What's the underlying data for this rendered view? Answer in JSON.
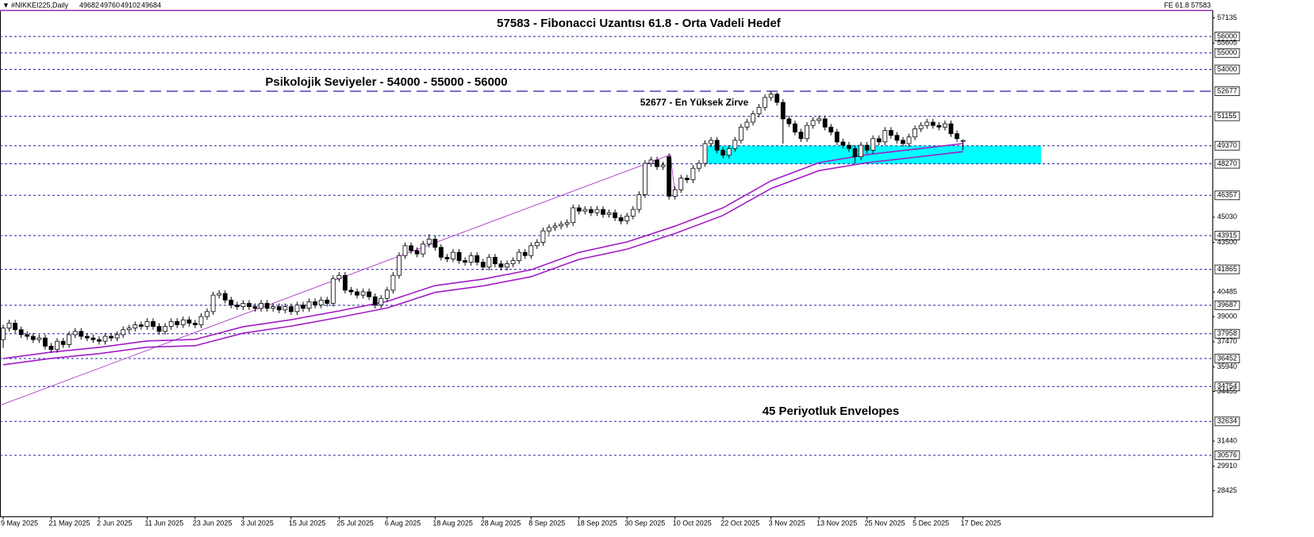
{
  "chart_data": {
    "type": "candlestick",
    "title": "#NIKKEI225,Daily",
    "categories": [
      "9 May 2025",
      null,
      null,
      null,
      null,
      null,
      null,
      null,
      "21 May 2025",
      null,
      null,
      null,
      null,
      null,
      null,
      null,
      "2 Jun 2025",
      null,
      null,
      null,
      null,
      null,
      null,
      null,
      "11 Jun 2025",
      null,
      null,
      null,
      null,
      null,
      null,
      null,
      "23 Jun 2025",
      null,
      null,
      null,
      null,
      null,
      null,
      null,
      "3 Jul 2025",
      null,
      null,
      null,
      null,
      null,
      null,
      null,
      "15 Jul 2025",
      null,
      null,
      null,
      null,
      null,
      null,
      null,
      "25 Jul 2025",
      null,
      null,
      null,
      null,
      null,
      null,
      null,
      "6 Aug 2025",
      null,
      null,
      null,
      null,
      null,
      null,
      null,
      "18 Aug 2025",
      null,
      null,
      null,
      null,
      null,
      null,
      null,
      "28 Aug 2025",
      null,
      null,
      null,
      null,
      null,
      null,
      null,
      "8 Sep 2025",
      null,
      null,
      null,
      null,
      null,
      null,
      null,
      "18 Sep 2025",
      null,
      null,
      null,
      null,
      null,
      null,
      null,
      "30 Sep 2025",
      null,
      null,
      null,
      null,
      null,
      null,
      null,
      "10 Oct 2025",
      null,
      null,
      null,
      null,
      null,
      null,
      null,
      "22 Oct 2025",
      null,
      null,
      null,
      null,
      null,
      null,
      null,
      "3 Nov 2025",
      null,
      null,
      null,
      null,
      null,
      null,
      null,
      "13 Nov 2025",
      null,
      null,
      null,
      null,
      null,
      null,
      null,
      "25 Nov 2025",
      null,
      null,
      null,
      null,
      null,
      null,
      null,
      "5 Dec 2025",
      null,
      null,
      null,
      null,
      null,
      null,
      null,
      "17 Dec 2025"
    ],
    "open": [
      37600,
      38300,
      38600,
      38200,
      37900,
      37800,
      37600,
      37700,
      37200,
      37000,
      37500,
      37300,
      37900,
      38100,
      37800,
      37700,
      37600,
      37500,
      37800,
      37700,
      37900,
      38200,
      38300,
      38500,
      38400,
      38700,
      38400,
      38100,
      38400,
      38700,
      38500,
      38800,
      38600,
      38500,
      39000,
      39300,
      40300,
      40400,
      40000,
      39700,
      39600,
      39800,
      39600,
      39500,
      39800,
      39500,
      39600,
      39400,
      39600,
      39300,
      39700,
      39500,
      39900,
      39700,
      40000,
      39800,
      41300,
      41500,
      40600,
      40500,
      40300,
      40500,
      40200,
      39700,
      40100,
      40600,
      41500,
      42700,
      43300,
      43000,
      42800,
      43400,
      43700,
      43200,
      42600,
      42500,
      42900,
      42400,
      42300,
      42700,
      42300,
      42000,
      42600,
      42200,
      42000,
      42200,
      42400,
      42900,
      42700,
      43300,
      43500,
      44200,
      44400,
      44500,
      44600,
      44700,
      45600,
      45400,
      45500,
      45300,
      45500,
      45200,
      45300,
      45000,
      44800,
      45100,
      45500,
      46400,
      48300,
      48500,
      48100,
      48700,
      46300,
      46700,
      47400,
      47300,
      48000,
      48300,
      49500,
      49700,
      49100,
      48800,
      49200,
      49700,
      50500,
      50800,
      51300,
      51700,
      52300,
      52500,
      52000,
      51000,
      50700,
      50200,
      49800,
      50600,
      50900,
      51000,
      50500,
      50200,
      49600,
      49400,
      49200,
      48700,
      49400,
      49100,
      49800,
      49600,
      50300,
      50000,
      49700,
      49500,
      49900,
      50400,
      50600,
      50800,
      50600,
      50500,
      50700,
      50100,
      49682
    ],
    "high": [
      38500,
      38800,
      38800,
      38400,
      38100,
      38000,
      37900,
      37900,
      37400,
      37700,
      37700,
      38100,
      38300,
      38300,
      38000,
      37900,
      37800,
      38000,
      38000,
      38100,
      38400,
      38500,
      38700,
      38700,
      38900,
      38900,
      38600,
      38600,
      38900,
      38900,
      39000,
      39000,
      38800,
      39200,
      39500,
      40500,
      40600,
      40600,
      40200,
      39900,
      40000,
      40000,
      39800,
      40000,
      40000,
      39800,
      39800,
      39800,
      39800,
      39900,
      39900,
      40100,
      40100,
      40200,
      40200,
      41500,
      41700,
      41700,
      40800,
      40700,
      40700,
      40700,
      40400,
      40300,
      40800,
      41700,
      42900,
      43500,
      43500,
      43200,
      43600,
      44000,
      43900,
      43400,
      42800,
      43100,
      43100,
      42600,
      42900,
      42900,
      42500,
      42800,
      42800,
      42400,
      42400,
      42600,
      43100,
      43100,
      43500,
      43700,
      44400,
      44600,
      44700,
      44800,
      44900,
      45800,
      45800,
      45700,
      45700,
      45700,
      45700,
      45500,
      45500,
      45200,
      45300,
      45700,
      46600,
      48500,
      48700,
      48700,
      48400,
      48900,
      46900,
      47600,
      47600,
      48200,
      48500,
      49700,
      49900,
      49900,
      49300,
      49400,
      49900,
      50700,
      51000,
      51500,
      51900,
      52500,
      52677,
      52600,
      52200,
      51200,
      50900,
      50400,
      50800,
      51100,
      51200,
      51200,
      50700,
      50400,
      49800,
      49600,
      49400,
      49600,
      49600,
      50000,
      50000,
      50500,
      50500,
      50200,
      49900,
      50100,
      50600,
      50800,
      51000,
      51000,
      50800,
      50900,
      50900,
      50300,
      49760
    ],
    "low": [
      37100,
      38100,
      38000,
      37700,
      37600,
      37400,
      37400,
      37000,
      36800,
      36800,
      37100,
      37100,
      37700,
      37600,
      37500,
      37400,
      37300,
      37300,
      37500,
      37500,
      37700,
      38000,
      38100,
      38200,
      38200,
      38200,
      37900,
      37900,
      38200,
      38300,
      38300,
      38400,
      38300,
      38300,
      38800,
      39100,
      40100,
      39800,
      39500,
      39400,
      39400,
      39400,
      39300,
      39300,
      39300,
      39300,
      39200,
      39200,
      39100,
      39100,
      39300,
      39300,
      39500,
      39500,
      39600,
      39600,
      41100,
      40400,
      40300,
      40100,
      40100,
      40000,
      39500,
      39500,
      39900,
      40400,
      41300,
      42500,
      42800,
      42600,
      42600,
      43200,
      43000,
      42400,
      42300,
      42300,
      42200,
      42100,
      42100,
      42100,
      41800,
      41800,
      42000,
      41800,
      41800,
      42000,
      42200,
      42500,
      42500,
      43100,
      43300,
      44000,
      44200,
      44300,
      44400,
      44500,
      45200,
      45200,
      45100,
      45100,
      45000,
      45000,
      44800,
      44600,
      44600,
      44900,
      45300,
      46200,
      48100,
      47900,
      47900,
      46100,
      46100,
      46500,
      47100,
      47100,
      47800,
      48100,
      49300,
      48900,
      48600,
      48600,
      49000,
      49500,
      50300,
      50600,
      51100,
      51500,
      52100,
      51800,
      49500,
      50500,
      50000,
      49600,
      49600,
      50400,
      50700,
      50300,
      50000,
      49400,
      49200,
      49000,
      48300,
      48500,
      48900,
      48900,
      49400,
      49400,
      49800,
      49500,
      49300,
      49300,
      49700,
      50200,
      50400,
      50400,
      50300,
      50300,
      49900,
      49600,
      49102
    ],
    "close": [
      38300,
      38600,
      38200,
      37900,
      37800,
      37600,
      37700,
      37200,
      37000,
      37500,
      37300,
      37900,
      38100,
      37800,
      37700,
      37600,
      37500,
      37800,
      37700,
      37900,
      38200,
      38300,
      38500,
      38400,
      38700,
      38400,
      38100,
      38400,
      38700,
      38500,
      38800,
      38600,
      38500,
      39000,
      39300,
      40300,
      40400,
      40000,
      39700,
      39600,
      39800,
      39600,
      39500,
      39800,
      39500,
      39600,
      39400,
      39600,
      39300,
      39700,
      39500,
      39900,
      39700,
      40000,
      39800,
      41300,
      41500,
      40600,
      40500,
      40300,
      40500,
      40200,
      39700,
      40100,
      40600,
      41500,
      42700,
      43300,
      43000,
      42800,
      43400,
      43700,
      43200,
      42600,
      42500,
      42900,
      42400,
      42300,
      42700,
      42300,
      42000,
      42600,
      42200,
      42000,
      42200,
      42400,
      42900,
      42700,
      43300,
      43500,
      44200,
      44400,
      44500,
      44600,
      44700,
      45600,
      45400,
      45500,
      45300,
      45500,
      45200,
      45300,
      45000,
      44800,
      45100,
      45500,
      46400,
      48300,
      48500,
      48100,
      48200,
      46300,
      46700,
      47400,
      47300,
      48000,
      48300,
      49500,
      49700,
      49100,
      48800,
      49200,
      49700,
      50500,
      50800,
      51300,
      51700,
      52300,
      52500,
      52000,
      51000,
      50700,
      50200,
      49800,
      50600,
      50900,
      51000,
      50500,
      50200,
      49600,
      49400,
      49200,
      48700,
      49400,
      49100,
      49800,
      49600,
      50300,
      50000,
      49700,
      49500,
      49900,
      50400,
      50600,
      50800,
      50600,
      50500,
      50700,
      50100,
      49800,
      49684
    ],
    "envelope": {
      "color": "#a21cc4",
      "categories": [
        "9 May 2025",
        "21 May 2025",
        "2 Jun 2025",
        "11 Jun 2025",
        "23 Jun 2025",
        "3 Jul 2025",
        "15 Jul 2025",
        "25 Jul 2025",
        "6 Aug 2025",
        "18 Aug 2025",
        "28 Aug 2025",
        "8 Sep 2025",
        "18 Sep 2025",
        "30 Sep 2025",
        "10 Oct 2025",
        "22 Oct 2025",
        "3 Nov 2025",
        "13 Nov 2025",
        "25 Nov 2025",
        "5 Dec 2025",
        "17 Dec 2025"
      ],
      "upper": [
        36450,
        36840,
        37130,
        37520,
        37610,
        38380,
        38810,
        39340,
        39920,
        40880,
        41270,
        41840,
        42900,
        43530,
        44490,
        45600,
        47240,
        48340,
        48830,
        49160,
        49500
      ],
      "lower": [
        36070,
        36460,
        36750,
        37140,
        37230,
        37990,
        38420,
        38950,
        39520,
        40470,
        40860,
        41420,
        42470,
        43090,
        44040,
        45140,
        46770,
        47860,
        48340,
        48670,
        49010
      ]
    },
    "ylim": [
      26870,
      57590
    ],
    "yticks": [
      57135,
      55605,
      45030,
      43500,
      40485,
      39000,
      37470,
      35940,
      34455,
      31440,
      29910,
      28425
    ],
    "levels": [
      56000,
      55000,
      54000,
      51155,
      49370,
      48270,
      46357,
      43915,
      41865,
      39687,
      37958,
      36452,
      34754,
      32634,
      30576
    ],
    "level_color": "#1e1ea8",
    "peak_line": 52677,
    "fib_line": {
      "value": 57583,
      "label": "FE 61.8 57583",
      "color": "#b040d8"
    },
    "zone": {
      "color": "#00ffff"
    },
    "annotations": [
      {
        "text": "57583 - Fibonacci Uzantısı 61.8 - Orta Vadeli Hedef",
        "color": "#9b2fc0"
      },
      {
        "text": "Psikolojik Seviyeler - 54000 - 55000 - 56000",
        "color": "#a52a2a"
      },
      {
        "text": "52677 - En Yüksek Zirve",
        "color": "#1a1a9a"
      },
      {
        "text": "45 Periyotluk Envelopes",
        "color": "#6a5acd"
      }
    ]
  }
}
